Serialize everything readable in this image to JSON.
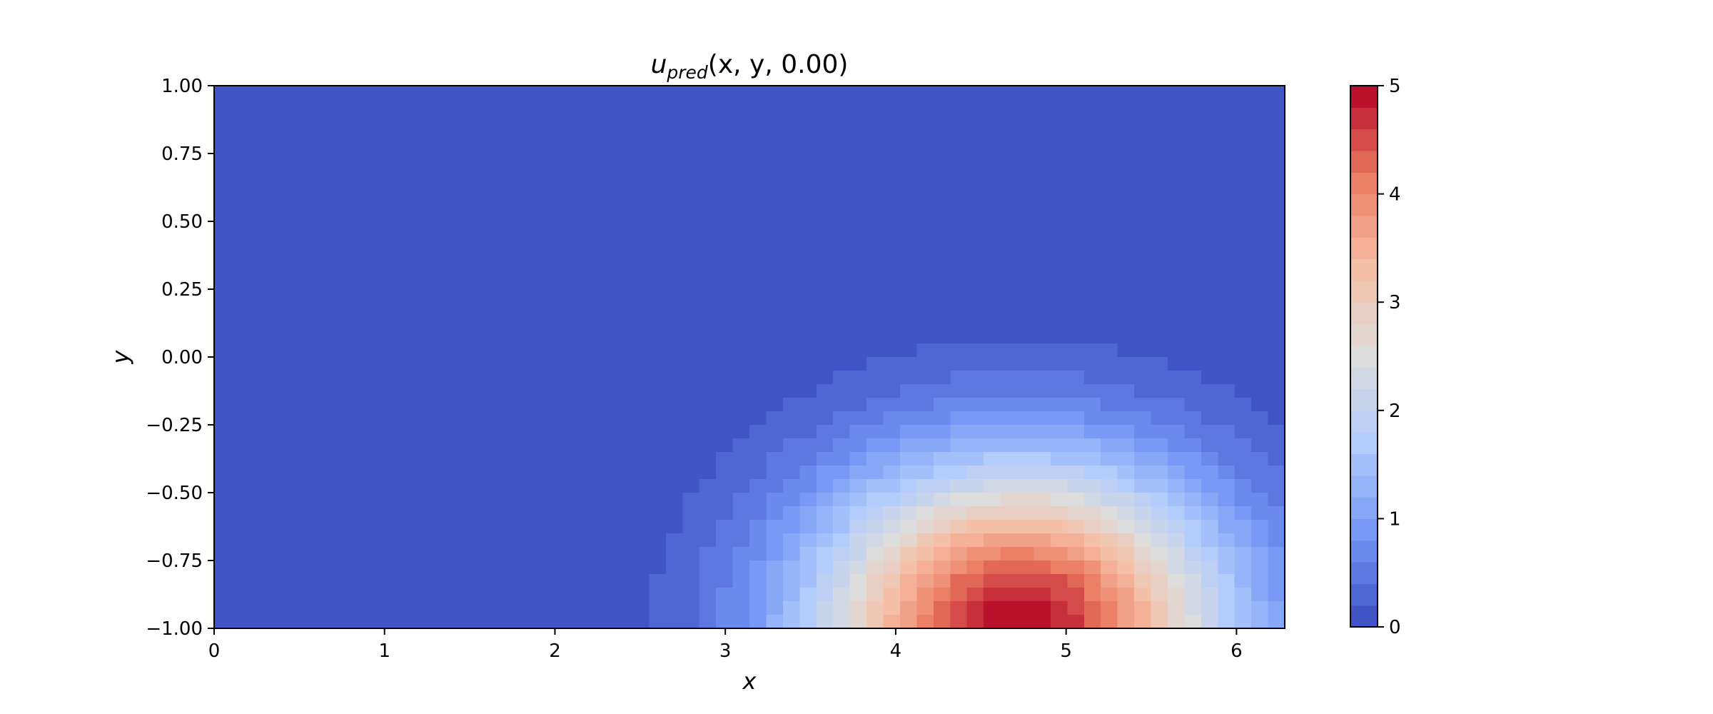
{
  "chart_data": {
    "type": "heatmap",
    "title": {
      "base": "u",
      "subscript": "pred",
      "args": "(x, y, 0.00)"
    },
    "xlabel": "x",
    "ylabel": "y",
    "xlim": [
      0,
      6.2832
    ],
    "ylim": [
      -1,
      1
    ],
    "xticks": [
      0,
      1,
      2,
      3,
      4,
      5,
      6
    ],
    "xtick_labels": [
      "0",
      "1",
      "2",
      "3",
      "4",
      "5",
      "6"
    ],
    "yticks": [
      1.0,
      0.75,
      0.5,
      0.25,
      0.0,
      -0.25,
      -0.5,
      -0.75,
      -1.0
    ],
    "ytick_labels": [
      "1.00",
      "0.75",
      "0.50",
      "0.25",
      "0.00",
      "−0.25",
      "−0.50",
      "−0.75",
      "−1.00"
    ],
    "grid": false,
    "colormap": "coolwarm",
    "colormap_stops": [
      "#3b4cc0",
      "#7396f5",
      "#b0cbfc",
      "#dddddd",
      "#f6bfa6",
      "#ea7b60",
      "#b40426"
    ],
    "color_levels": 25,
    "colorbar": {
      "range": [
        0,
        5
      ],
      "ticks": [
        0,
        1,
        2,
        3,
        4,
        5
      ],
      "tick_labels": [
        "0",
        "1",
        "2",
        "3",
        "4",
        "5"
      ],
      "position": "right"
    },
    "grid_shape": {
      "nx": 64,
      "ny": 40
    },
    "field": {
      "form": "gaussian bump",
      "peak_value": 5.0,
      "peak_x": 4.72,
      "peak_y": -1.0,
      "sigma_x": 0.85,
      "sigma_y": 0.42
    }
  }
}
